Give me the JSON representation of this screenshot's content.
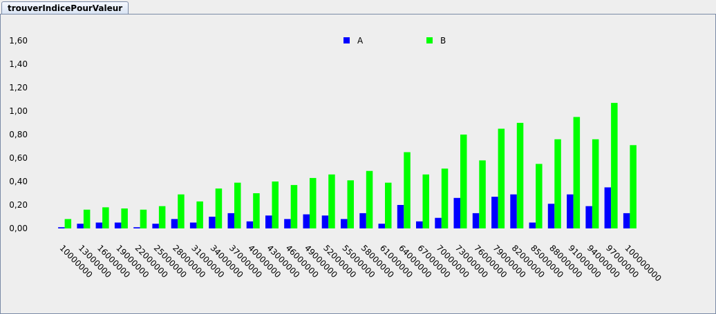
{
  "tab": {
    "label": "trouverIndicePourValeur"
  },
  "chart_data": {
    "type": "bar",
    "categories": [
      "10000000",
      "13000000",
      "16000000",
      "19000000",
      "22000000",
      "25000000",
      "28000000",
      "31000000",
      "34000000",
      "37000000",
      "40000000",
      "43000000",
      "46000000",
      "49000000",
      "52000000",
      "55000000",
      "58000000",
      "61000000",
      "64000000",
      "67000000",
      "70000000",
      "73000000",
      "76000000",
      "79000000",
      "82000000",
      "85000000",
      "88000000",
      "91000000",
      "94000000",
      "97000000",
      "100000000"
    ],
    "series": [
      {
        "name": "A",
        "color": "#0000ff",
        "values": [
          0.01,
          0.04,
          0.05,
          0.05,
          0.01,
          0.04,
          0.08,
          0.05,
          0.1,
          0.13,
          0.06,
          0.11,
          0.08,
          0.12,
          0.11,
          0.08,
          0.13,
          0.04,
          0.2,
          0.06,
          0.09,
          0.26,
          0.13,
          0.27,
          0.29,
          0.05,
          0.21,
          0.29,
          0.19,
          0.35,
          0.13
        ]
      },
      {
        "name": "B",
        "color": "#00ff00",
        "values": [
          0.08,
          0.16,
          0.18,
          0.17,
          0.16,
          0.19,
          0.29,
          0.23,
          0.34,
          0.39,
          0.3,
          0.4,
          0.37,
          0.43,
          0.46,
          0.41,
          0.49,
          0.39,
          0.65,
          0.46,
          0.51,
          0.8,
          0.58,
          0.85,
          0.9,
          0.55,
          0.76,
          0.95,
          0.76,
          1.07,
          0.71
        ]
      }
    ],
    "yticks": [
      "0,00",
      "0,20",
      "0,40",
      "0,60",
      "0,80",
      "1,00",
      "1,20",
      "1,40",
      "1,60"
    ],
    "ylim": [
      -0.03,
      1.62
    ],
    "legend": "top-center",
    "title": "",
    "xlabel": "",
    "ylabel": ""
  }
}
